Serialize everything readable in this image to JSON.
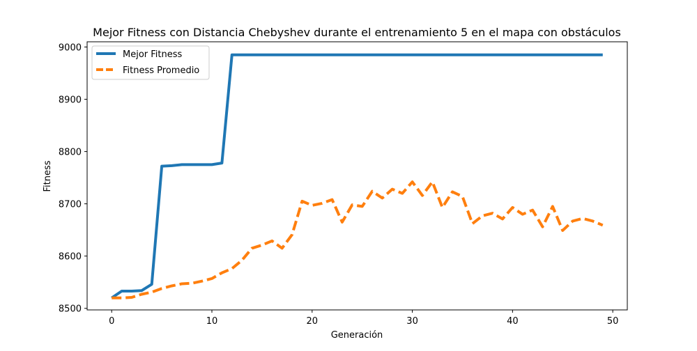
{
  "chart_data": {
    "type": "line",
    "title": "Mejor Fitness con Distancia Chebyshev durante el entrenamiento 5 en el mapa con obstáculos",
    "xlabel": "Generación",
    "ylabel": "Fitness",
    "xlim": [
      -2.45,
      51.45
    ],
    "ylim": [
      8497,
      9010
    ],
    "xticks": [
      0,
      10,
      20,
      30,
      40,
      50
    ],
    "yticks": [
      8500,
      8600,
      8700,
      8800,
      8900,
      9000
    ],
    "legend_position": "top-left",
    "grid": false,
    "series": [
      {
        "name": "Mejor Fitness",
        "color": "#1f77b4",
        "style": "solid",
        "x": [
          0,
          1,
          2,
          3,
          4,
          5,
          6,
          7,
          8,
          9,
          10,
          11,
          12,
          13,
          14,
          15,
          16,
          17,
          18,
          19,
          20,
          21,
          22,
          23,
          24,
          25,
          26,
          27,
          28,
          29,
          30,
          31,
          32,
          33,
          34,
          35,
          36,
          37,
          38,
          39,
          40,
          41,
          42,
          43,
          44,
          45,
          46,
          47,
          48,
          49
        ],
        "y": [
          8520,
          8533,
          8533,
          8534,
          8546,
          8772,
          8773,
          8775,
          8775,
          8775,
          8775,
          8778,
          8985,
          8985,
          8985,
          8985,
          8985,
          8985,
          8985,
          8985,
          8985,
          8985,
          8985,
          8985,
          8985,
          8985,
          8985,
          8985,
          8985,
          8985,
          8985,
          8985,
          8985,
          8985,
          8985,
          8985,
          8985,
          8985,
          8985,
          8985,
          8985,
          8985,
          8985,
          8985,
          8985,
          8985,
          8985,
          8985,
          8985,
          8985
        ]
      },
      {
        "name": "Fitness Promedio",
        "color": "#ff7f0e",
        "style": "dashed",
        "x": [
          0,
          1,
          2,
          3,
          4,
          5,
          6,
          7,
          8,
          9,
          10,
          11,
          12,
          13,
          14,
          15,
          16,
          17,
          18,
          19,
          20,
          21,
          22,
          23,
          24,
          25,
          26,
          27,
          28,
          29,
          30,
          31,
          32,
          33,
          34,
          35,
          36,
          37,
          38,
          39,
          40,
          41,
          42,
          43,
          44,
          45,
          46,
          47,
          48,
          49
        ],
        "y": [
          8520,
          8520,
          8521,
          8527,
          8531,
          8538,
          8543,
          8547,
          8548,
          8552,
          8557,
          8568,
          8576,
          8592,
          8615,
          8621,
          8629,
          8615,
          8641,
          8705,
          8697,
          8701,
          8708,
          8665,
          8698,
          8695,
          8724,
          8711,
          8728,
          8720,
          8742,
          8716,
          8742,
          8693,
          8723,
          8714,
          8662,
          8677,
          8682,
          8671,
          8693,
          8680,
          8688,
          8656,
          8695,
          8649,
          8667,
          8672,
          8667,
          8659
        ]
      }
    ]
  }
}
